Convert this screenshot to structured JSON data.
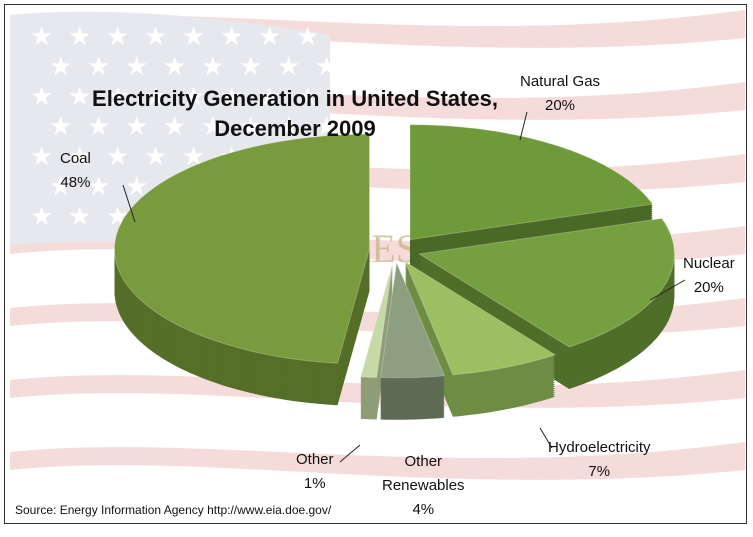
{
  "chart_data": {
    "type": "pie",
    "title_lines": [
      "Electricity Generation in United States,",
      "December 2009"
    ],
    "slices": [
      {
        "label": "Natural Gas",
        "value": 20,
        "display": "20%",
        "color": "#6f9a3a",
        "side": "#4a6826"
      },
      {
        "label": "Nuclear",
        "value": 20,
        "display": "20%",
        "color": "#76a040",
        "side": "#4f6e2a"
      },
      {
        "label": "Hydroelectricity",
        "value": 7,
        "display": "7%",
        "color": "#9dbf62",
        "side": "#6f8c45"
      },
      {
        "label": "Other Renewables",
        "value": 4,
        "display": "4%",
        "color": "#8e9e80",
        "side": "#5f6c55"
      },
      {
        "label": "Other",
        "value": 1,
        "display": "1%",
        "color": "#c8d9a8",
        "side": "#8f9c78"
      },
      {
        "label": "Coal",
        "value": 48,
        "display": "48%",
        "color": "#7a9a3e",
        "side": "#556e28"
      }
    ],
    "style": "3d-exploded",
    "legend": "none"
  },
  "labels": {
    "natural_gas": [
      "Natural Gas",
      "20%"
    ],
    "nuclear": [
      "Nuclear",
      "20%"
    ],
    "hydro": [
      "Hydroelectricity",
      "7%"
    ],
    "other_renewables": [
      "Other",
      "Renewables",
      "4%"
    ],
    "other": [
      "Other",
      "1%"
    ],
    "coal": [
      "Coal",
      "48%"
    ]
  },
  "watermark": "CASEY RESEARCH.COM",
  "source": "Source:  Energy Information  Agency  http://www.eia.doe.gov/"
}
